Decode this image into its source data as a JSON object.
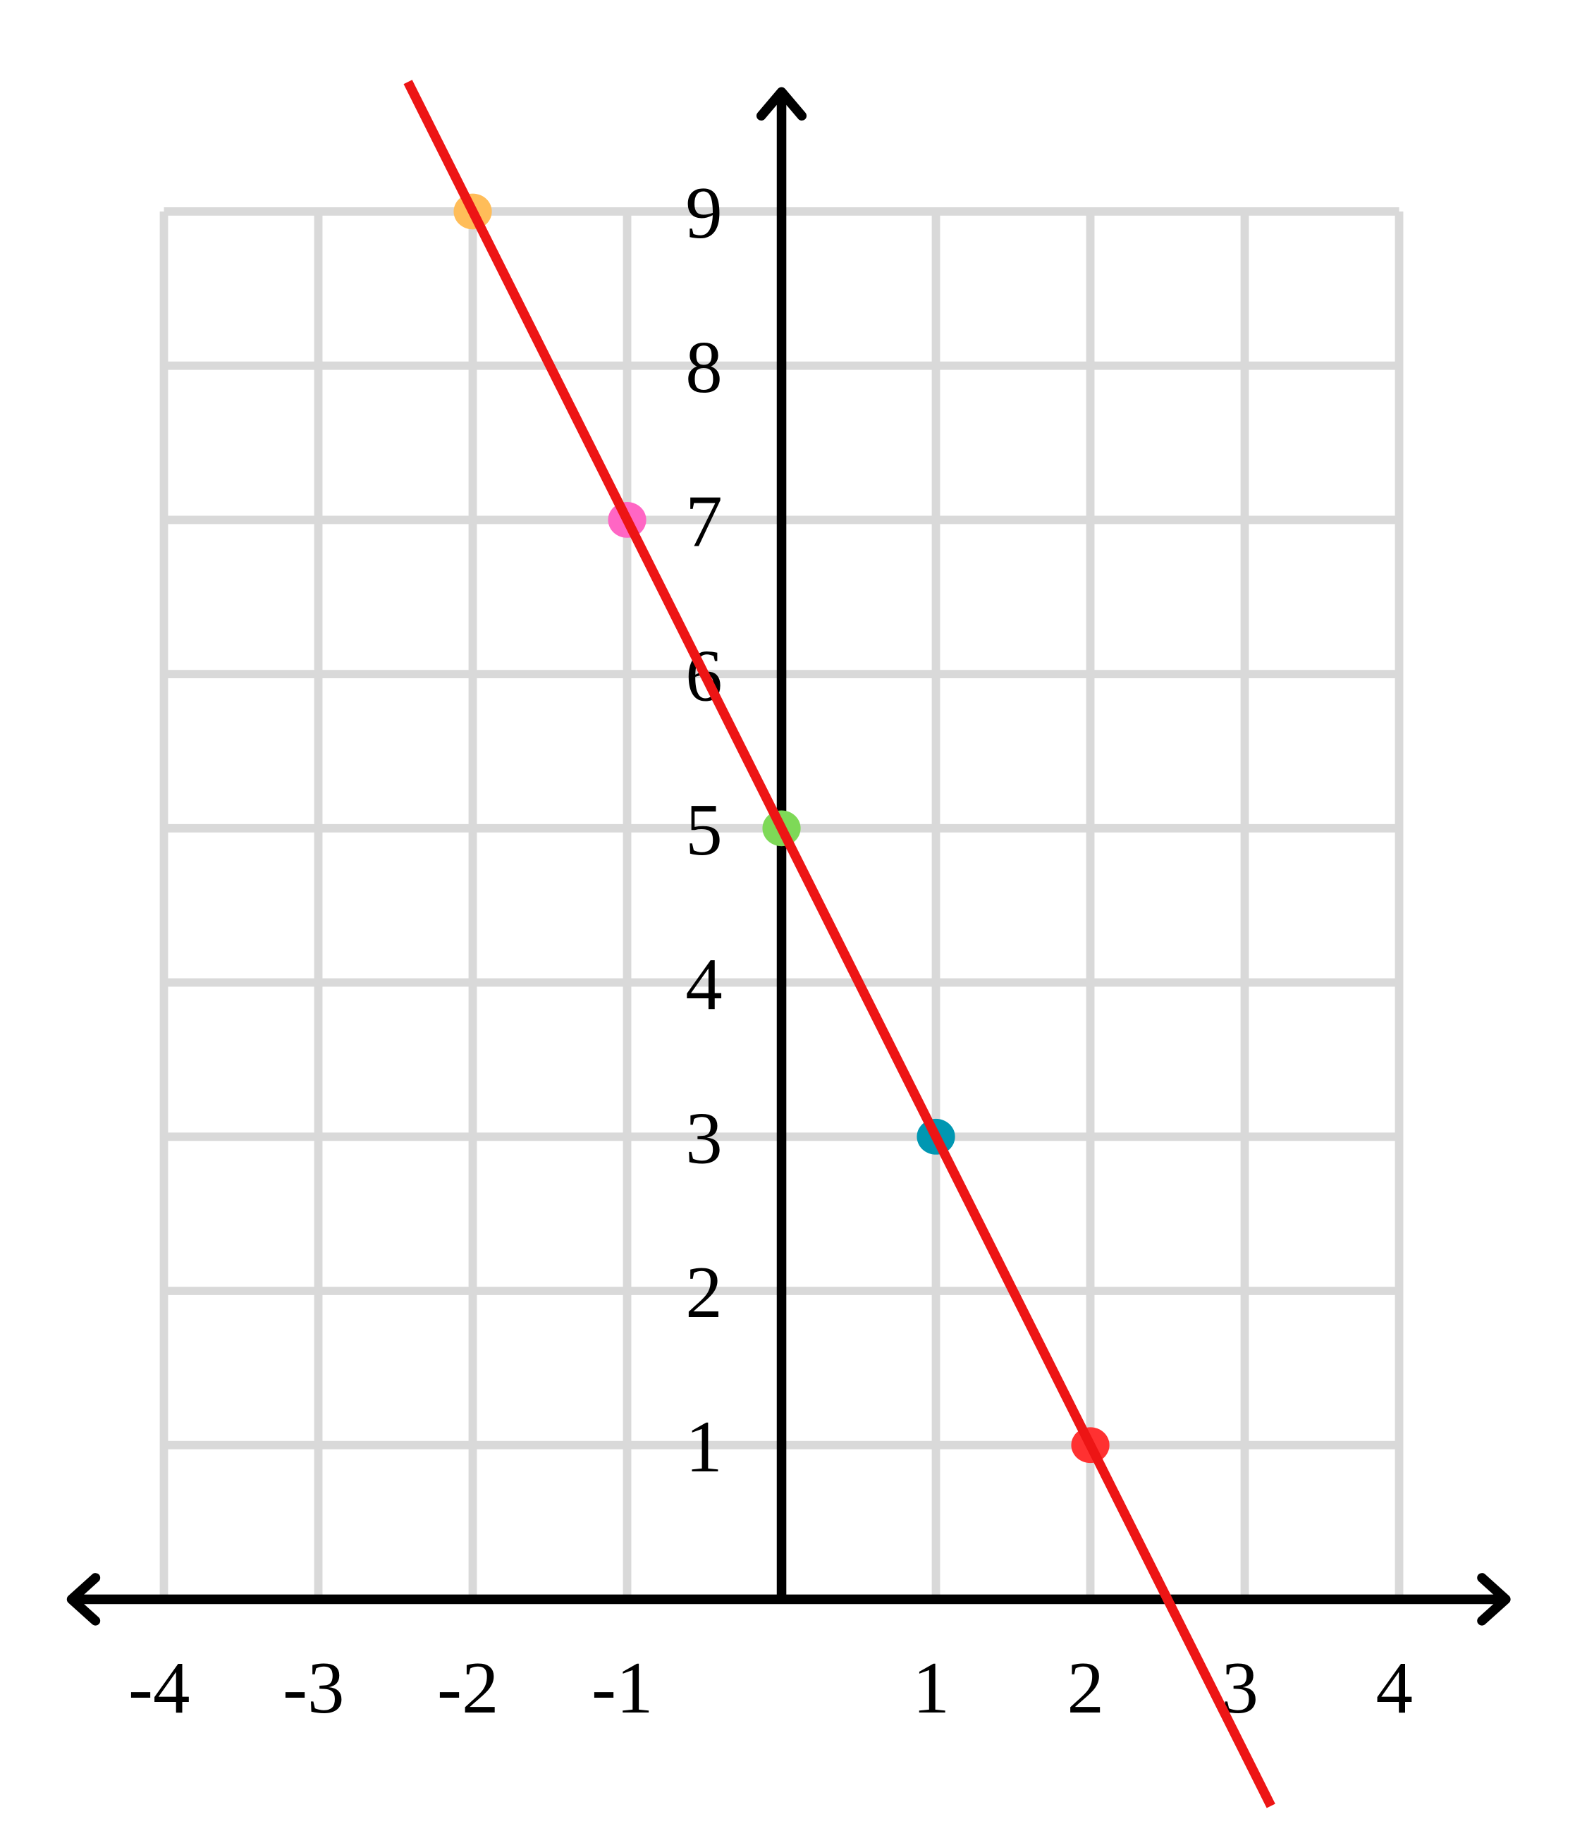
{
  "chart_data": {
    "type": "scatter",
    "title": "",
    "xlabel": "",
    "ylabel": "",
    "xlim": [
      -4,
      4
    ],
    "ylim": [
      0,
      9
    ],
    "grid": true,
    "x_ticks": [
      "-4",
      "-3",
      "-2",
      "-1",
      "1",
      "2",
      "3",
      "4"
    ],
    "y_ticks": [
      "1",
      "2",
      "3",
      "4",
      "5",
      "6",
      "7",
      "8",
      "9"
    ],
    "points": [
      {
        "x": -2,
        "y": 9,
        "color": "#ffbd59"
      },
      {
        "x": -1,
        "y": 7,
        "color": "#ff66c4"
      },
      {
        "x": 0,
        "y": 5,
        "color": "#7ed957"
      },
      {
        "x": 1,
        "y": 3,
        "color": "#0097b2"
      },
      {
        "x": 2,
        "y": 1,
        "color": "#ff3131"
      }
    ],
    "line": {
      "slope": -2,
      "intercept": 5,
      "x_range": [
        -2.42,
        3.17
      ],
      "color": "#ed1515"
    },
    "colors": {
      "grid": "#d9d9d9",
      "axes": "#000000"
    }
  }
}
